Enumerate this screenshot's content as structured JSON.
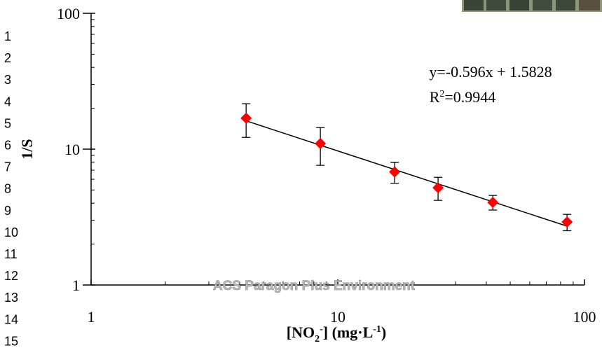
{
  "page": {
    "line_numbers": [
      1,
      2,
      3,
      4,
      5,
      6,
      7,
      8,
      9,
      10,
      11,
      12,
      13,
      14,
      15
    ],
    "watermark": "ACS Paragon Plus Environment"
  },
  "chart_data": {
    "type": "scatter",
    "log_x": true,
    "log_y": true,
    "x_label": [
      "[NO",
      "2",
      "-",
      "] (mg·L",
      "-1",
      ")"
    ],
    "y_label": "1/S",
    "equation": "y=-0.596x + 1.5828",
    "r_squared": [
      "R",
      "2",
      "=0.9944"
    ],
    "x": [
      4.25,
      8.5,
      17,
      25.5,
      42.5,
      85
    ],
    "series": [
      {
        "name": "1/S",
        "color": "#ff0000",
        "values": [
          16.9,
          11.0,
          6.8,
          5.2,
          4.06,
          2.91
        ],
        "errors": [
          4.7,
          3.4,
          1.2,
          1.0,
          0.5,
          0.4
        ]
      }
    ],
    "trendline": {
      "slope": -0.596,
      "intercept": 1.5828,
      "x_range": [
        4.25,
        85
      ],
      "color": "#000000"
    },
    "xlim": [
      1,
      100
    ],
    "ylim": [
      1,
      100
    ],
    "xticks": [
      1,
      10,
      100
    ],
    "yticks": [
      1,
      10,
      100
    ],
    "xminorticks": [
      2,
      3,
      4,
      5,
      6,
      7,
      8,
      9,
      20,
      30,
      40,
      50,
      60,
      70,
      80,
      90
    ],
    "yminorticks": [
      2,
      3,
      4,
      5,
      6,
      7,
      8,
      9,
      20,
      30,
      40,
      50,
      60,
      70,
      80,
      90
    ]
  }
}
